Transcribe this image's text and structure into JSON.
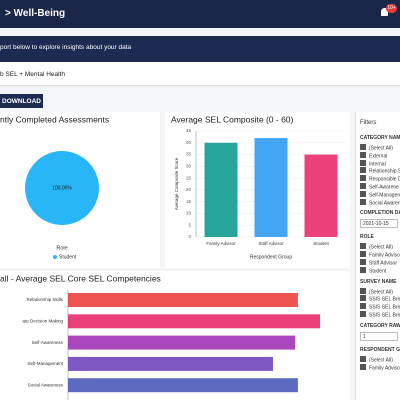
{
  "header": {
    "title": "> Well-Being",
    "badge": "10+"
  },
  "banner": {
    "text": "port below to explore insights about your data"
  },
  "tab": {
    "label": "b SEL + Mental Health"
  },
  "button": {
    "label": "DOWNLOAD"
  },
  "chart_data": [
    {
      "type": "pie",
      "title": "ntly Completed Assessments",
      "categories": [
        "Student"
      ],
      "values": [
        100
      ],
      "value_labels": [
        "100.00%"
      ],
      "colors": [
        "#29b6f6"
      ],
      "legend_title": "Role"
    },
    {
      "type": "bar",
      "title": "Average SEL Composite (0 - 60)",
      "y_label": "Average Composite Score",
      "x_label": "Respondent Group",
      "categories": [
        "Family Advisor",
        "Staff Advisor",
        "Student"
      ],
      "values": [
        40,
        42,
        35
      ],
      "colors": [
        "#26a69a",
        "#42a5f5",
        "#ec407a"
      ],
      "ylim": [
        0,
        45
      ],
      "yticks": [
        0,
        5,
        10,
        15,
        20,
        25,
        30,
        35,
        40,
        45
      ],
      "grid": true
    },
    {
      "type": "hbar",
      "title": "all - Average SEL Core SEL Competencies",
      "categories": [
        "Relationship Skills",
        "ate Decision Making",
        "Self-Awareness",
        "Self-Management",
        "Social Awareness"
      ],
      "values": [
        41.5,
        45.5,
        41,
        37,
        41.5
      ],
      "colors": [
        "#ef5350",
        "#ec407a",
        "#ab47bc",
        "#7e57c2",
        "#5c6bc0"
      ],
      "xlim": [
        0,
        50
      ]
    }
  ],
  "filters": {
    "title": "Filters",
    "sections": [
      {
        "label": "CATEGORY NAM",
        "items": [
          "(Select All)",
          "External",
          "Internal",
          "Relationship S",
          "Responsible D",
          "Self-Awarene",
          "Self-Managen",
          "Social Awarene"
        ]
      },
      {
        "label": "COMPLETION DA",
        "input": "2021-10-15"
      },
      {
        "label": "ROLE",
        "items": [
          "(Select All)",
          "Family Advisor",
          "Staff Advisor",
          "Student"
        ]
      },
      {
        "label": "SURVEY NAME",
        "items": [
          "(Select All)",
          "SSIS SEL Brie",
          "SSIS SEL Brie",
          "SSIS SEL Brie"
        ]
      },
      {
        "label": "CATEGORY RAW",
        "input": "1"
      },
      {
        "label": "RESPONDENT GR",
        "items": [
          "(Select All)",
          "Family Advisor"
        ]
      }
    ]
  }
}
